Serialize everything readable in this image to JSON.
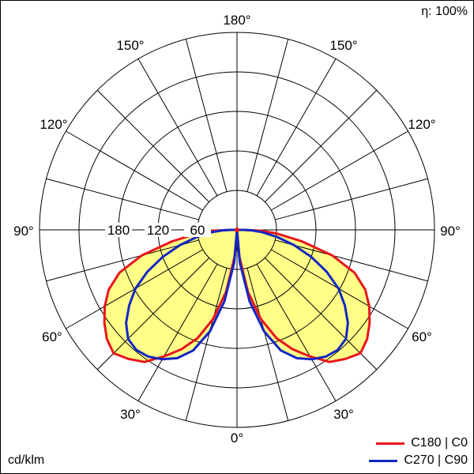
{
  "efficiency_label": "η: 100%",
  "unit_label": "cd/klm",
  "legend": [
    {
      "name": "C180 | C0",
      "color": "#e8161b"
    },
    {
      "name": "C270 | C90",
      "color": "#1326c4"
    }
  ],
  "chart_data": {
    "type": "polar",
    "angle_labels": {
      "top": "180°",
      "upper_left": "150°",
      "upper_right": "150°",
      "mid_left": "120°",
      "mid_right": "120°",
      "left": "90°",
      "right": "90°",
      "lower_left": "60°",
      "lower_right": "60°",
      "bottom_left": "30°",
      "bottom_right": "30°",
      "bottom": "0°"
    },
    "radial_ticks": [
      60,
      120,
      180
    ],
    "radial_tick_labels": [
      "60",
      "120",
      "180"
    ],
    "r_max": 300,
    "series": [
      {
        "name": "C180 | C0",
        "color": "#e8161b",
        "fill": "#ffff88",
        "points": [
          [
            0,
            0
          ],
          [
            5,
            40
          ],
          [
            10,
            95
          ],
          [
            15,
            140
          ],
          [
            20,
            175
          ],
          [
            25,
            200
          ],
          [
            30,
            222
          ],
          [
            35,
            245
          ],
          [
            40,
            256
          ],
          [
            45,
            265
          ],
          [
            50,
            258
          ],
          [
            55,
            246
          ],
          [
            60,
            232
          ],
          [
            65,
            215
          ],
          [
            70,
            190
          ],
          [
            75,
            150
          ],
          [
            80,
            100
          ],
          [
            85,
            60
          ],
          [
            88,
            35
          ],
          [
            90,
            12
          ]
        ]
      },
      {
        "name": "C270 | C90",
        "color": "#1326c4",
        "fill": "#ffff88",
        "points": [
          [
            0,
            0
          ],
          [
            5,
            50
          ],
          [
            10,
            110
          ],
          [
            15,
            160
          ],
          [
            20,
            195
          ],
          [
            25,
            215
          ],
          [
            30,
            227
          ],
          [
            35,
            235
          ],
          [
            40,
            238
          ],
          [
            45,
            234
          ],
          [
            50,
            220
          ],
          [
            55,
            200
          ],
          [
            60,
            178
          ],
          [
            65,
            150
          ],
          [
            70,
            120
          ],
          [
            75,
            90
          ],
          [
            80,
            62
          ],
          [
            85,
            38
          ],
          [
            88,
            22
          ],
          [
            90,
            10
          ]
        ]
      }
    ]
  }
}
